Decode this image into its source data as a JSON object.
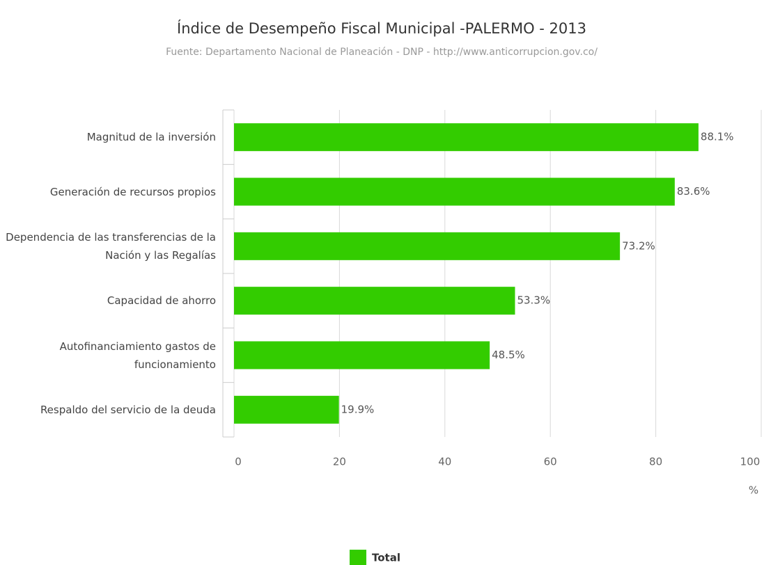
{
  "chart_data": {
    "type": "bar",
    "orientation": "horizontal",
    "title": "Índice de Desempeño Fiscal Municipal -PALERMO - 2013",
    "subtitle": "Fuente: Departamento Nacional de Planeación - DNP - http://www.anticorrupcion.gov.co/",
    "categories": [
      "Magnitud de la inversión",
      "Generación de recursos propios",
      "Dependencia de las transferencias de la Nación y las Regalías",
      "Capacidad de ahorro",
      "Autofinanciamiento gastos de funcionamiento",
      "Respaldo del servicio de la deuda"
    ],
    "series": [
      {
        "name": "Total",
        "color": "#33cc00",
        "values": [
          88.1,
          83.6,
          73.2,
          53.3,
          48.5,
          19.9
        ],
        "value_labels": [
          "88.1%",
          "83.6%",
          "73.2%",
          "53.3%",
          "48.5%",
          "19.9%"
        ]
      }
    ],
    "xlabel": "%",
    "xlim": [
      0,
      100
    ],
    "xticks": [
      0,
      20,
      40,
      60,
      80,
      100
    ],
    "grid": true,
    "legend": "bottom"
  }
}
